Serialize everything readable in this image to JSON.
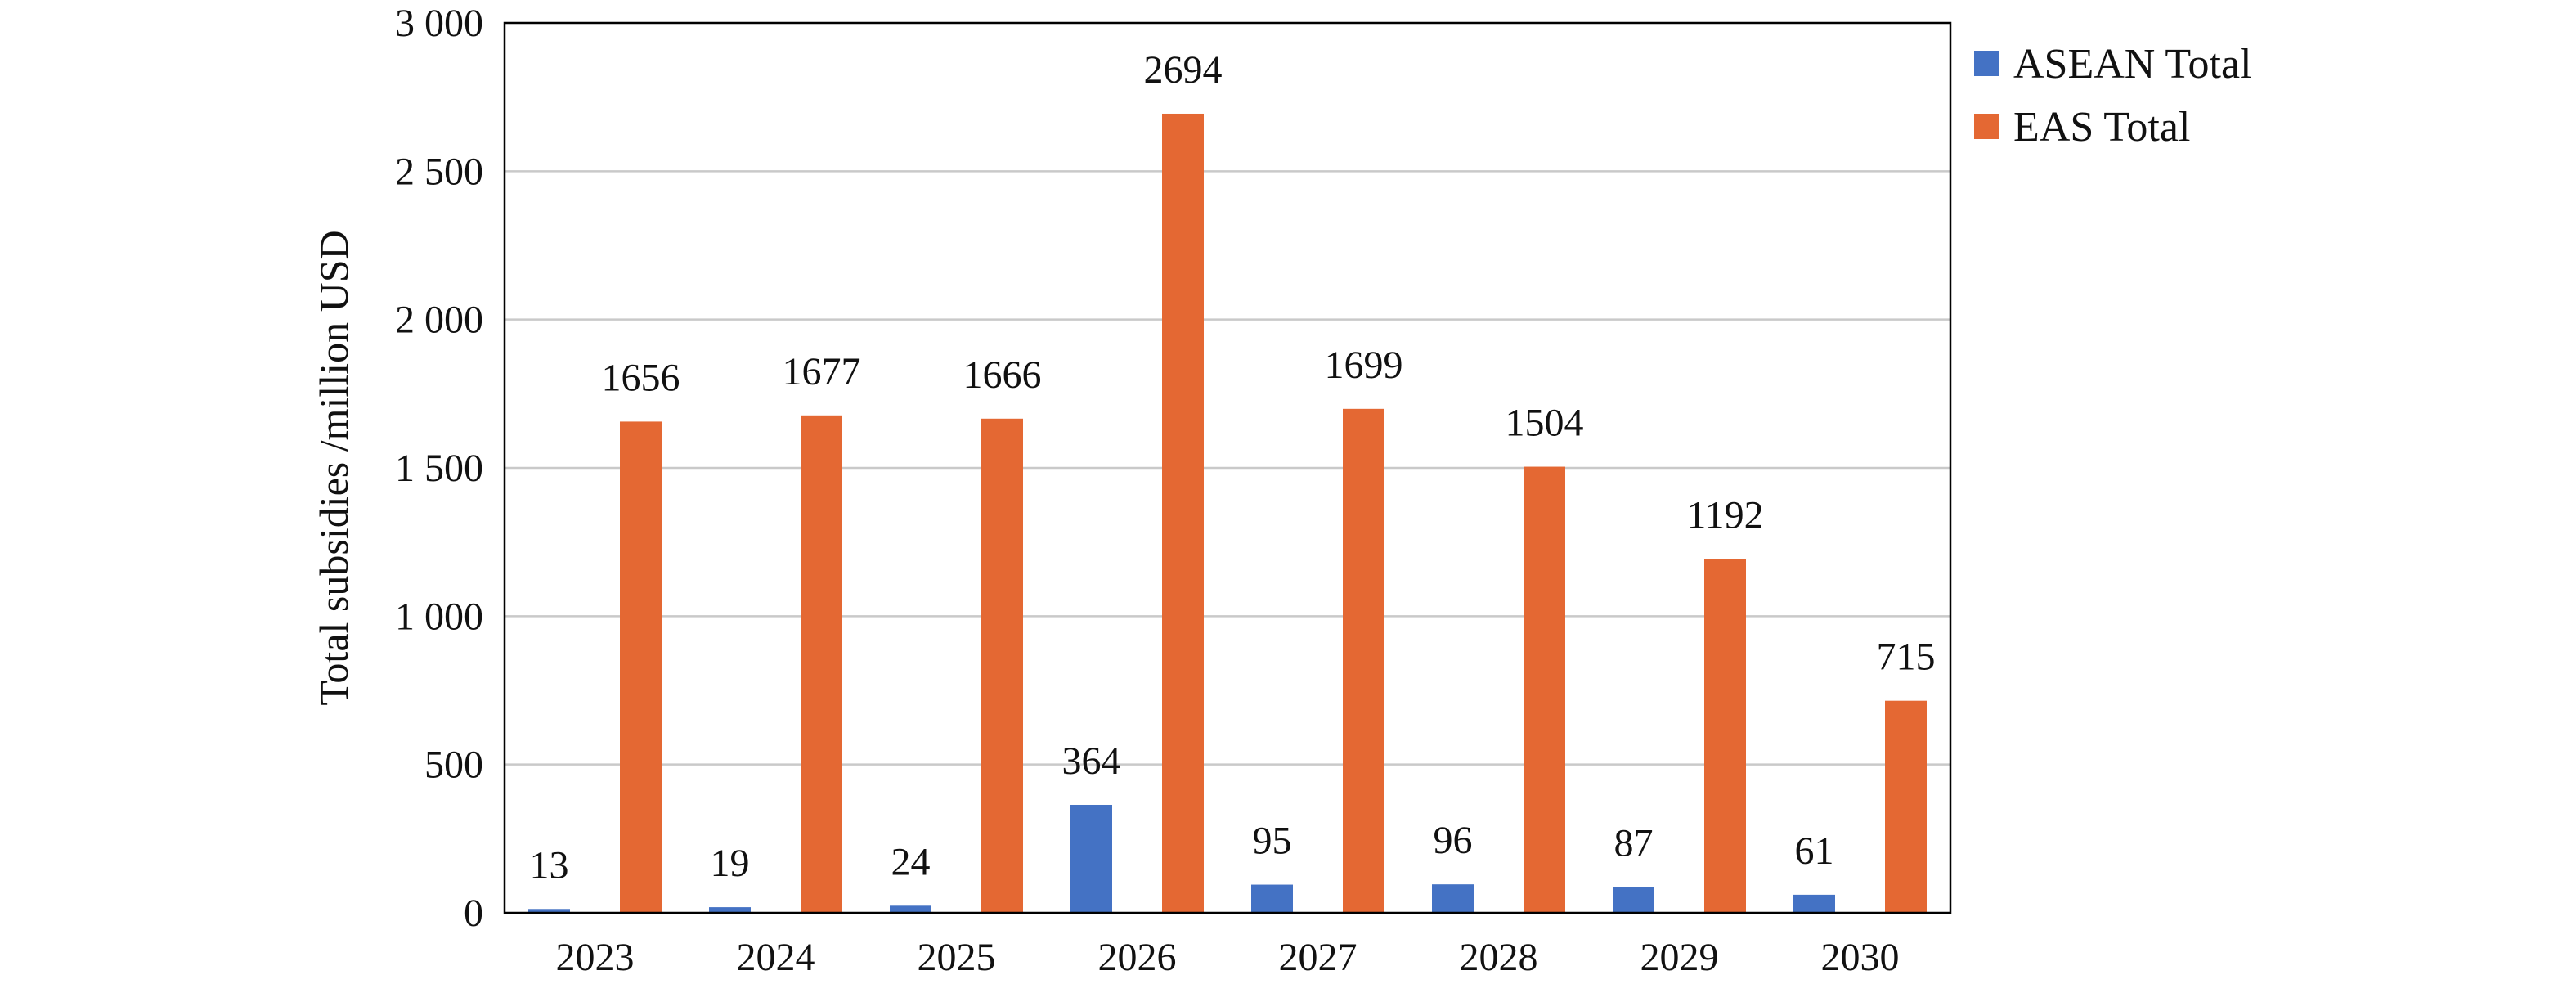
{
  "chart_data": {
    "type": "bar",
    "title": "",
    "xlabel": "",
    "ylabel": "Total subsidies /million USD",
    "ylim": [
      0,
      3000
    ],
    "yticks": [
      0,
      500,
      1000,
      1500,
      2000,
      2500,
      3000
    ],
    "ytick_labels": [
      "0",
      "500",
      "1 000",
      "1 500",
      "2 000",
      "2 500",
      "3 000"
    ],
    "categories": [
      "2023",
      "2024",
      "2025",
      "2026",
      "2027",
      "2028",
      "2029",
      "2030"
    ],
    "series": [
      {
        "name": "ASEAN Total",
        "color": "#4472C4",
        "values": [
          13,
          19,
          24,
          364,
          95,
          96,
          87,
          61
        ],
        "labels": [
          "13",
          "19",
          "24",
          "364",
          "95",
          "96",
          "87",
          "61"
        ]
      },
      {
        "name": "EAS Total",
        "color": "#E46833",
        "values": [
          1656,
          1677,
          1666,
          2694,
          1699,
          1504,
          1192,
          715
        ],
        "labels": [
          "1656",
          "1677",
          "1666",
          "2694",
          "1699",
          "1504",
          "1192",
          "715"
        ]
      }
    ],
    "grid": true,
    "legend_position": "right"
  }
}
